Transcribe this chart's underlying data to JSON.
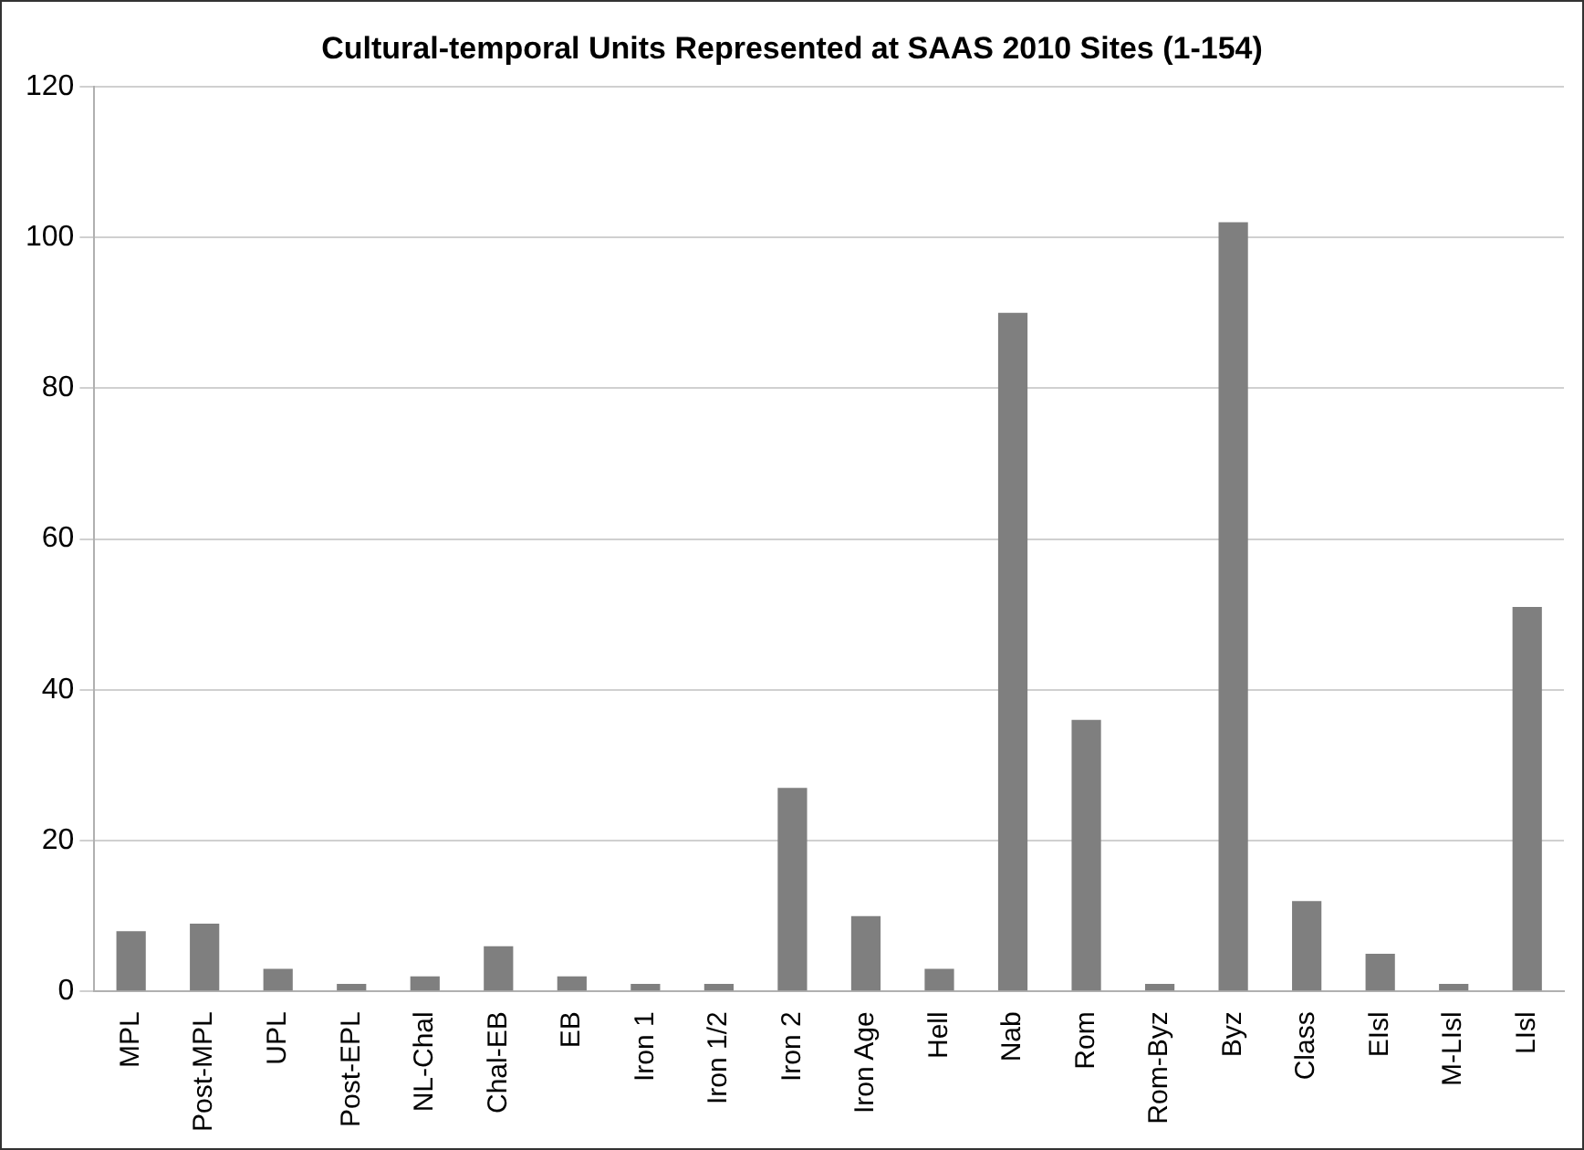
{
  "chart_data": {
    "type": "bar",
    "title": "Cultural-temporal Units Represented at SAAS 2010 Sites (1-154)",
    "categories": [
      "MPL",
      "Post-MPL",
      "UPL",
      "Post-EPL",
      "NL-Chal",
      "Chal-EB",
      "EB",
      "Iron 1",
      "Iron 1/2",
      "Iron 2",
      "Iron Age",
      "Hell",
      "Nab",
      "Rom",
      "Rom-Byz",
      "Byz",
      "Class",
      "EIsl",
      "M-LIsl",
      "LIsl"
    ],
    "values": [
      8,
      9,
      3,
      1,
      2,
      6,
      2,
      1,
      1,
      27,
      10,
      3,
      90,
      36,
      1,
      102,
      12,
      5,
      1,
      51
    ],
    "color": "#7f7f7f",
    "ylim": [
      0,
      120
    ],
    "yticks": [
      0,
      20,
      40,
      60,
      80,
      100,
      120
    ],
    "grid": "y",
    "legend": false
  }
}
